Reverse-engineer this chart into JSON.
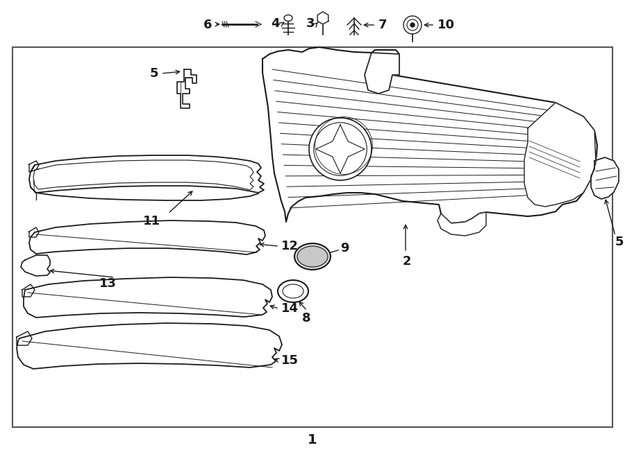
{
  "bg_color": "#ffffff",
  "box_bg": "#ffffff",
  "line_color": "#1a1a1a",
  "box_border_color": "#333333"
}
